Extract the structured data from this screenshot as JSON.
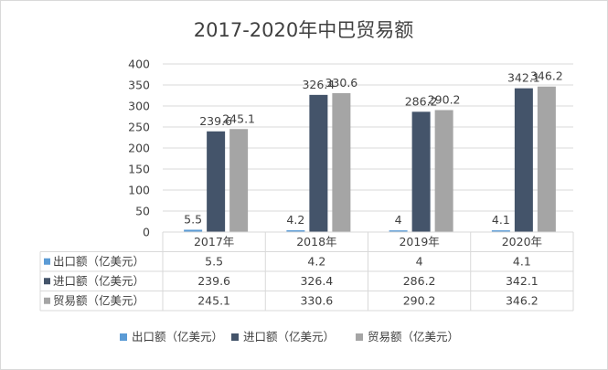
{
  "chart_data": {
    "type": "bar",
    "title": "2017-2020年中巴贸易额",
    "categories": [
      "2017年",
      "2018年",
      "2019年",
      "2020年"
    ],
    "series": [
      {
        "name": "出口额（亿美元）",
        "values": [
          5.5,
          4.2,
          4,
          4.1
        ],
        "color": "#5B9BD5"
      },
      {
        "name": "进口额（亿美元）",
        "values": [
          239.6,
          326.4,
          286.2,
          342.1
        ],
        "color": "#44546A"
      },
      {
        "name": "贸易额（亿美元）",
        "values": [
          245.1,
          330.6,
          290.2,
          346.2
        ],
        "color": "#A5A5A5"
      }
    ],
    "ylim": [
      0,
      400
    ],
    "yticks": [
      0,
      50,
      100,
      150,
      200,
      250,
      300,
      350,
      400
    ],
    "xlabel": "",
    "ylabel": "",
    "grid": true,
    "legend_position": "bottom",
    "data_table": true
  }
}
